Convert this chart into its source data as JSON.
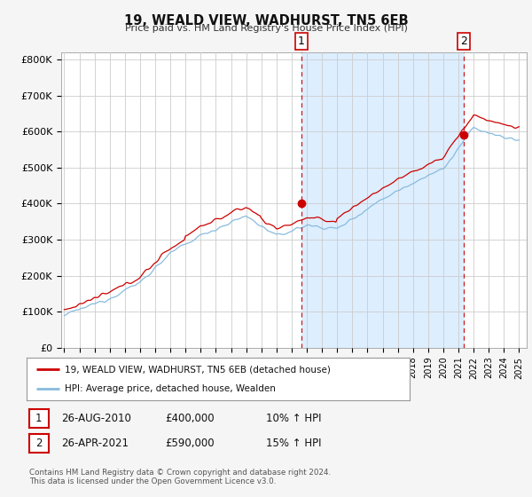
{
  "title": "19, WEALD VIEW, WADHURST, TN5 6EB",
  "subtitle": "Price paid vs. HM Land Registry's House Price Index (HPI)",
  "ylabel_ticks": [
    "£0",
    "£100K",
    "£200K",
    "£300K",
    "£400K",
    "£500K",
    "£600K",
    "£700K",
    "£800K"
  ],
  "ytick_values": [
    0,
    100000,
    200000,
    300000,
    400000,
    500000,
    600000,
    700000,
    800000
  ],
  "ylim": [
    0,
    820000
  ],
  "xlim_start": 1994.8,
  "xlim_end": 2025.5,
  "sale1_year": 2010.65,
  "sale1_price": 400000,
  "sale2_year": 2021.33,
  "sale2_price": 590000,
  "legend_line1": "19, WEALD VIEW, WADHURST, TN5 6EB (detached house)",
  "legend_line2": "HPI: Average price, detached house, Wealden",
  "table_row1": [
    "1",
    "26-AUG-2010",
    "£400,000",
    "10% ↑ HPI"
  ],
  "table_row2": [
    "2",
    "26-APR-2021",
    "£590,000",
    "15% ↑ HPI"
  ],
  "footer": "Contains HM Land Registry data © Crown copyright and database right 2024.\nThis data is licensed under the Open Government Licence v3.0.",
  "line_color_red": "#cc0000",
  "line_color_blue": "#88bbdd",
  "shade_color": "#ddeeff",
  "dot_color": "#cc0000",
  "bg_color": "#f5f5f5",
  "plot_bg": "#ffffff",
  "grid_color": "#cccccc",
  "dashed_line_color": "#cc0000"
}
